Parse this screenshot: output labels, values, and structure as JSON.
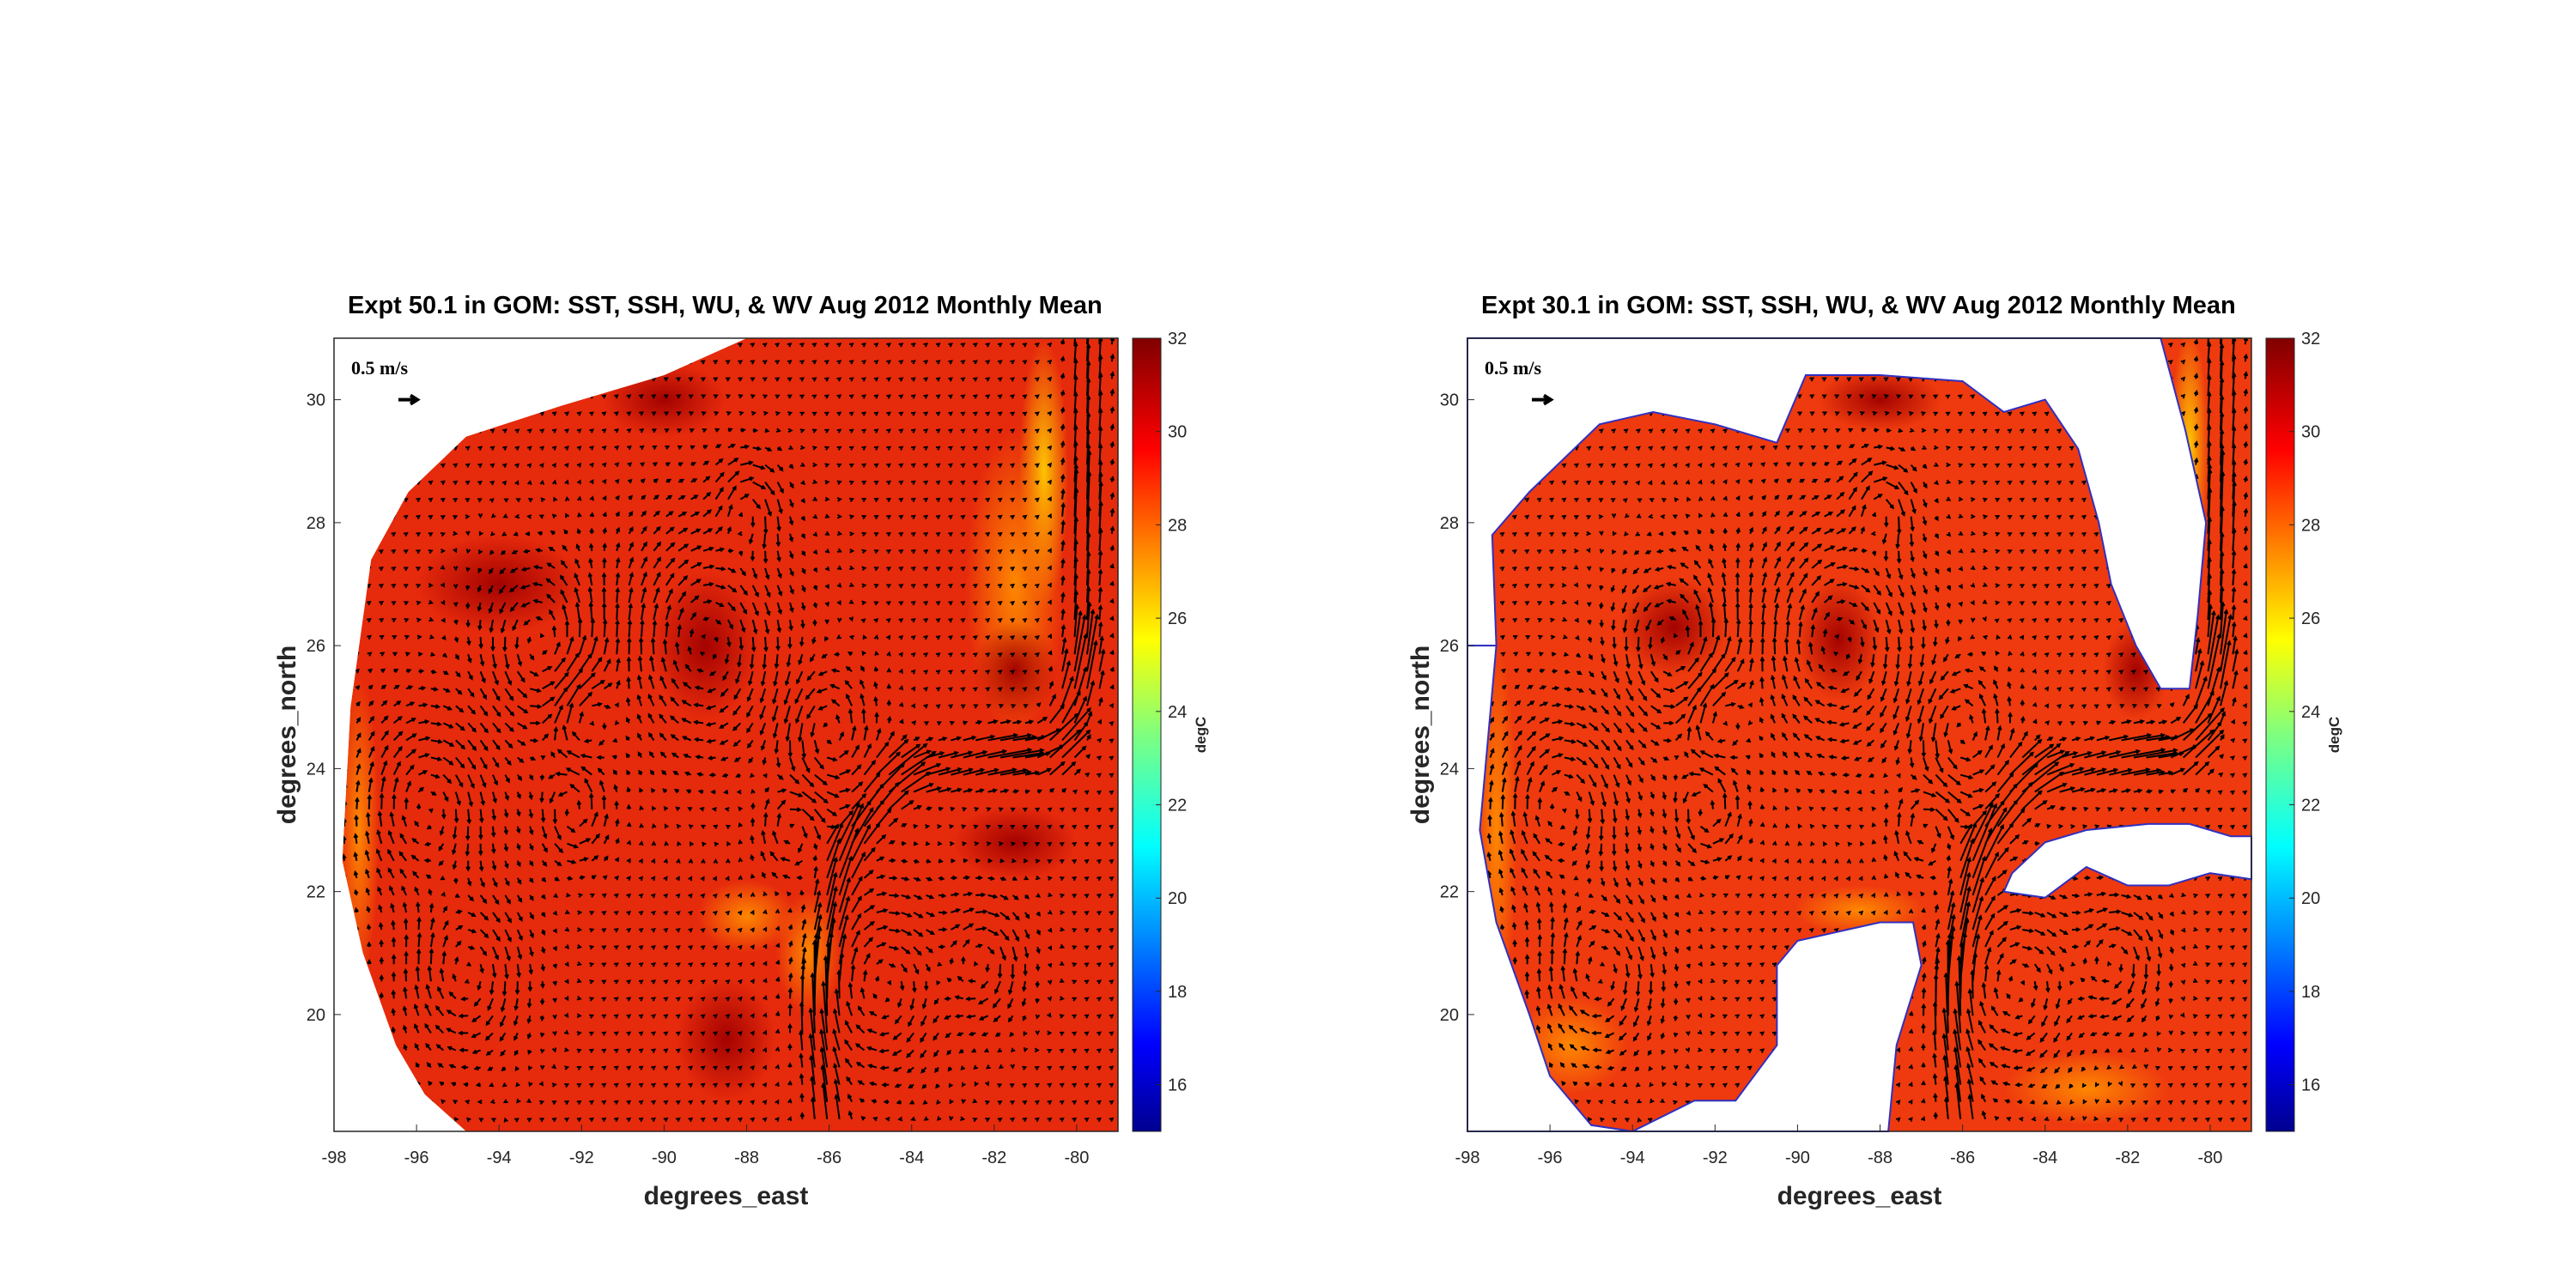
{
  "chart_data": [
    {
      "type": "heatmap",
      "subtype": "map with quiver vectors",
      "title": "Expt 50.1 in GOM: SST, SSH, WU, & WV Aug 2012 Monthly Mean",
      "xlabel": "degrees_east",
      "ylabel": "degrees_north",
      "xlim": [
        -98,
        -79
      ],
      "ylim": [
        18.1,
        31
      ],
      "xticks": [
        "-98",
        "-96",
        "-94",
        "-92",
        "-90",
        "-88",
        "-86",
        "-84",
        "-82",
        "-80"
      ],
      "yticks": [
        "20",
        "22",
        "24",
        "26",
        "28",
        "30"
      ],
      "grid": true,
      "colorbar": {
        "label": "degC",
        "range": [
          15,
          32
        ],
        "ticks": [
          "16",
          "18",
          "20",
          "22",
          "24",
          "26",
          "28",
          "30",
          "32"
        ],
        "colormap": "jet",
        "placement": "right"
      },
      "reference_vector": {
        "label": "0.5 m/s",
        "value": 0.5
      },
      "sst_typical": 30,
      "land_mask": "smoothed/interpolated"
    },
    {
      "type": "heatmap",
      "subtype": "map with quiver vectors",
      "title": "Expt 30.1 in GOM: SST, SSH, WU, & WV Aug 2012 Monthly Mean",
      "xlabel": "degrees_east",
      "ylabel": "degrees_north",
      "xlim": [
        -98,
        -79
      ],
      "ylim": [
        18.1,
        31
      ],
      "xticks": [
        "-98",
        "-96",
        "-94",
        "-92",
        "-90",
        "-88",
        "-86",
        "-84",
        "-82",
        "-80"
      ],
      "yticks": [
        "20",
        "22",
        "24",
        "26",
        "28",
        "30"
      ],
      "grid": true,
      "colorbar": {
        "label": "degC",
        "range": [
          15,
          32
        ],
        "ticks": [
          "16",
          "18",
          "20",
          "22",
          "24",
          "26",
          "28",
          "30",
          "32"
        ],
        "colormap": "jet",
        "placement": "right"
      },
      "reference_vector": {
        "label": "0.5 m/s",
        "value": 0.5
      },
      "sst_typical": 29.5,
      "land_mask": "coastline"
    }
  ],
  "colors": {
    "sea": "#e8240c",
    "land": "#ffffff",
    "contour": "#1a1aa0",
    "arrow": "#000000",
    "grid": "#dcdcdc"
  }
}
